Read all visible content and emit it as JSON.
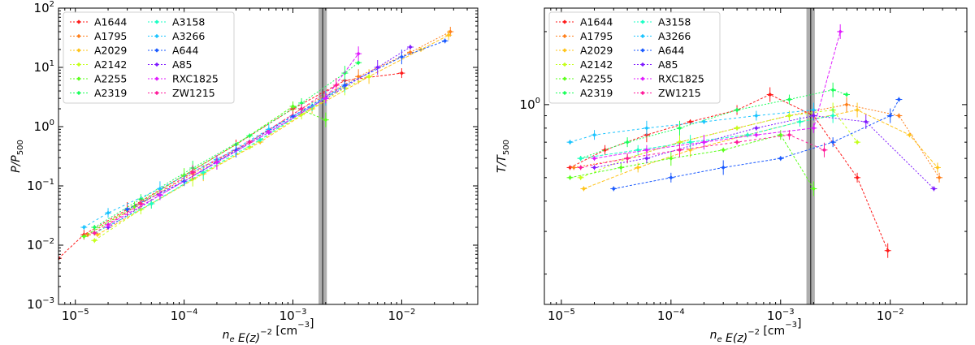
{
  "chart_data": [
    {
      "type": "scatter",
      "panel": "left",
      "xlabel": "n_e E(z)^{-2} [cm^{-3}]",
      "ylabel": "P/P_500",
      "xscale": "log",
      "yscale": "log",
      "xlim": [
        7e-06,
        0.05
      ],
      "ylim": [
        0.001,
        100
      ],
      "x_ticks": [
        "10",
        "10",
        "10",
        "10"
      ],
      "x_tick_exponents": [
        "−5",
        "−4",
        "−3",
        "−2"
      ],
      "y_ticks": [
        "10",
        "10",
        "10",
        "10",
        "10",
        "10"
      ],
      "y_tick_exponents": [
        "−3",
        "−2",
        "−1",
        "0",
        "1",
        "2"
      ],
      "vband": {
        "center": 0.00188,
        "low": 0.00172,
        "high": 0.00205
      },
      "legend_position": "top-left",
      "series": [
        {
          "name": "A1644",
          "color": "#ff1a1a",
          "x": [
            7e-06,
            1.2e-05,
            3e-05,
            0.0001,
            0.0003,
            0.001,
            0.003,
            0.01
          ],
          "y": [
            0.006,
            0.015,
            0.04,
            0.15,
            0.5,
            2.0,
            6.0,
            8.0
          ]
        },
        {
          "name": "A1795",
          "color": "#ff7f1a",
          "x": [
            1.3e-05,
            4e-05,
            0.00012,
            0.0004,
            0.0012,
            0.004,
            0.012,
            0.028
          ],
          "y": [
            0.015,
            0.05,
            0.16,
            0.55,
            2.0,
            7.0,
            18.0,
            40.0
          ]
        },
        {
          "name": "A2029",
          "color": "#ffc41a",
          "x": [
            1.6e-05,
            5e-05,
            0.00015,
            0.0005,
            0.0015,
            0.005,
            0.015,
            0.027
          ],
          "y": [
            0.015,
            0.05,
            0.16,
            0.55,
            2.0,
            7.0,
            20.0,
            35.0
          ]
        },
        {
          "name": "A2142",
          "color": "#c4ff1a",
          "x": [
            1.5e-05,
            4e-05,
            0.00012,
            0.0004,
            0.0012,
            0.003,
            0.005
          ],
          "y": [
            0.012,
            0.04,
            0.13,
            0.45,
            1.6,
            4.5,
            7.0
          ]
        },
        {
          "name": "A2255",
          "color": "#5aff1a",
          "x": [
            1.2e-05,
            3.5e-05,
            0.0001,
            0.0003,
            0.001,
            0.002
          ],
          "y": [
            0.014,
            0.045,
            0.15,
            0.5,
            2.2,
            1.3
          ]
        },
        {
          "name": "A2319",
          "color": "#1aff5a",
          "x": [
            1.5e-05,
            4e-05,
            0.00012,
            0.0004,
            0.0012,
            0.003,
            0.004
          ],
          "y": [
            0.02,
            0.06,
            0.2,
            0.7,
            2.5,
            8.0,
            12.0
          ]
        },
        {
          "name": "A3158",
          "color": "#1affc4",
          "x": [
            1.5e-05,
            5e-05,
            0.00015,
            0.0005,
            0.0015,
            0.003
          ],
          "y": [
            0.016,
            0.05,
            0.17,
            0.6,
            2.2,
            5.0
          ]
        },
        {
          "name": "A3266",
          "color": "#1ac4ff",
          "x": [
            1.2e-05,
            2e-05,
            6e-05,
            0.0002,
            0.0006,
            0.002
          ],
          "y": [
            0.02,
            0.035,
            0.09,
            0.28,
            0.9,
            3.0
          ]
        },
        {
          "name": "A644",
          "color": "#1a5aff",
          "x": [
            3e-05,
            0.0001,
            0.0003,
            0.001,
            0.003,
            0.01,
            0.025
          ],
          "y": [
            0.04,
            0.12,
            0.4,
            1.5,
            5.0,
            15.0,
            28.0
          ]
        },
        {
          "name": "A85",
          "color": "#7f1aff",
          "x": [
            2e-05,
            6e-05,
            0.0002,
            0.0006,
            0.002,
            0.006,
            0.012
          ],
          "y": [
            0.02,
            0.07,
            0.25,
            0.8,
            3.0,
            10.0,
            22.0
          ]
        },
        {
          "name": "RXC1825",
          "color": "#e01aff",
          "x": [
            2e-05,
            6e-05,
            0.0002,
            0.0006,
            0.002,
            0.004
          ],
          "y": [
            0.022,
            0.07,
            0.25,
            0.8,
            3.0,
            17.0
          ]
        },
        {
          "name": "ZW1215",
          "color": "#ff1a9a",
          "x": [
            1.5e-05,
            4e-05,
            0.00012,
            0.0004,
            0.0012,
            0.0025
          ],
          "y": [
            0.016,
            0.05,
            0.17,
            0.55,
            2.0,
            5.0
          ]
        }
      ]
    },
    {
      "type": "scatter",
      "panel": "right",
      "xlabel": "n_e E(z)^{-2} [cm^{-3}]",
      "ylabel": "T/T_500",
      "xscale": "log",
      "yscale": "log",
      "xlim": [
        7e-06,
        0.05
      ],
      "ylim": [
        0.15,
        2.5
      ],
      "x_ticks": [
        "10",
        "10",
        "10",
        "10"
      ],
      "x_tick_exponents": [
        "−5",
        "−4",
        "−3",
        "−2"
      ],
      "y_ticks": [
        "10"
      ],
      "y_tick_exponents": [
        "0"
      ],
      "vband": {
        "center": 0.00188,
        "low": 0.00172,
        "high": 0.00205
      },
      "legend_position": "top-left",
      "series": [
        {
          "name": "A1644",
          "color": "#ff1a1a",
          "x": [
            1.2e-05,
            2.5e-05,
            6e-05,
            0.00015,
            0.0004,
            0.0008,
            0.002,
            0.005,
            0.0095
          ],
          "y": [
            0.55,
            0.65,
            0.75,
            0.85,
            0.95,
            1.1,
            0.9,
            0.5,
            0.25
          ]
        },
        {
          "name": "A1795",
          "color": "#ff7f1a",
          "x": [
            1.3e-05,
            4e-05,
            0.00012,
            0.0004,
            0.0012,
            0.004,
            0.012,
            0.028
          ],
          "y": [
            0.55,
            0.6,
            0.7,
            0.8,
            0.9,
            1.0,
            0.9,
            0.5
          ]
        },
        {
          "name": "A2029",
          "color": "#ffc41a",
          "x": [
            1.6e-05,
            5e-05,
            0.00015,
            0.0005,
            0.0015,
            0.005,
            0.015,
            0.027
          ],
          "y": [
            0.45,
            0.55,
            0.65,
            0.75,
            0.85,
            0.95,
            0.75,
            0.55
          ]
        },
        {
          "name": "A2142",
          "color": "#c4ff1a",
          "x": [
            1.5e-05,
            4e-05,
            0.00012,
            0.0004,
            0.0012,
            0.003,
            0.005
          ],
          "y": [
            0.5,
            0.6,
            0.7,
            0.8,
            0.9,
            0.95,
            0.7
          ]
        },
        {
          "name": "A2255",
          "color": "#5aff1a",
          "x": [
            1.2e-05,
            3.5e-05,
            0.0001,
            0.0003,
            0.001,
            0.002
          ],
          "y": [
            0.5,
            0.55,
            0.6,
            0.65,
            0.75,
            0.45
          ]
        },
        {
          "name": "A2319",
          "color": "#1aff5a",
          "x": [
            1.5e-05,
            4e-05,
            0.00012,
            0.0004,
            0.0012,
            0.003,
            0.004
          ],
          "y": [
            0.6,
            0.7,
            0.8,
            0.95,
            1.05,
            1.15,
            1.1
          ]
        },
        {
          "name": "A3158",
          "color": "#1affc4",
          "x": [
            1.5e-05,
            5e-05,
            0.00015,
            0.0005,
            0.0015,
            0.003
          ],
          "y": [
            0.6,
            0.65,
            0.7,
            0.75,
            0.85,
            0.9
          ]
        },
        {
          "name": "A3266",
          "color": "#1ac4ff",
          "x": [
            1.2e-05,
            2e-05,
            6e-05,
            0.0002,
            0.0006,
            0.002
          ],
          "y": [
            0.7,
            0.75,
            0.8,
            0.85,
            0.9,
            0.95
          ]
        },
        {
          "name": "A644",
          "color": "#1a5aff",
          "x": [
            3e-05,
            0.0001,
            0.0003,
            0.001,
            0.003,
            0.01,
            0.012
          ],
          "y": [
            0.45,
            0.5,
            0.55,
            0.6,
            0.7,
            0.9,
            1.05
          ]
        },
        {
          "name": "A85",
          "color": "#7f1aff",
          "x": [
            2e-05,
            6e-05,
            0.0002,
            0.0006,
            0.002,
            0.006,
            0.025
          ],
          "y": [
            0.55,
            0.6,
            0.7,
            0.8,
            0.9,
            0.85,
            0.45
          ]
        },
        {
          "name": "RXC1825",
          "color": "#e01aff",
          "x": [
            2e-05,
            6e-05,
            0.0002,
            0.0006,
            0.002,
            0.0035
          ],
          "y": [
            0.6,
            0.65,
            0.7,
            0.75,
            0.8,
            2.0
          ]
        },
        {
          "name": "ZW1215",
          "color": "#ff1a9a",
          "x": [
            1.5e-05,
            4e-05,
            0.00012,
            0.0004,
            0.0012,
            0.0025
          ],
          "y": [
            0.55,
            0.6,
            0.65,
            0.7,
            0.75,
            0.65
          ]
        }
      ]
    }
  ]
}
